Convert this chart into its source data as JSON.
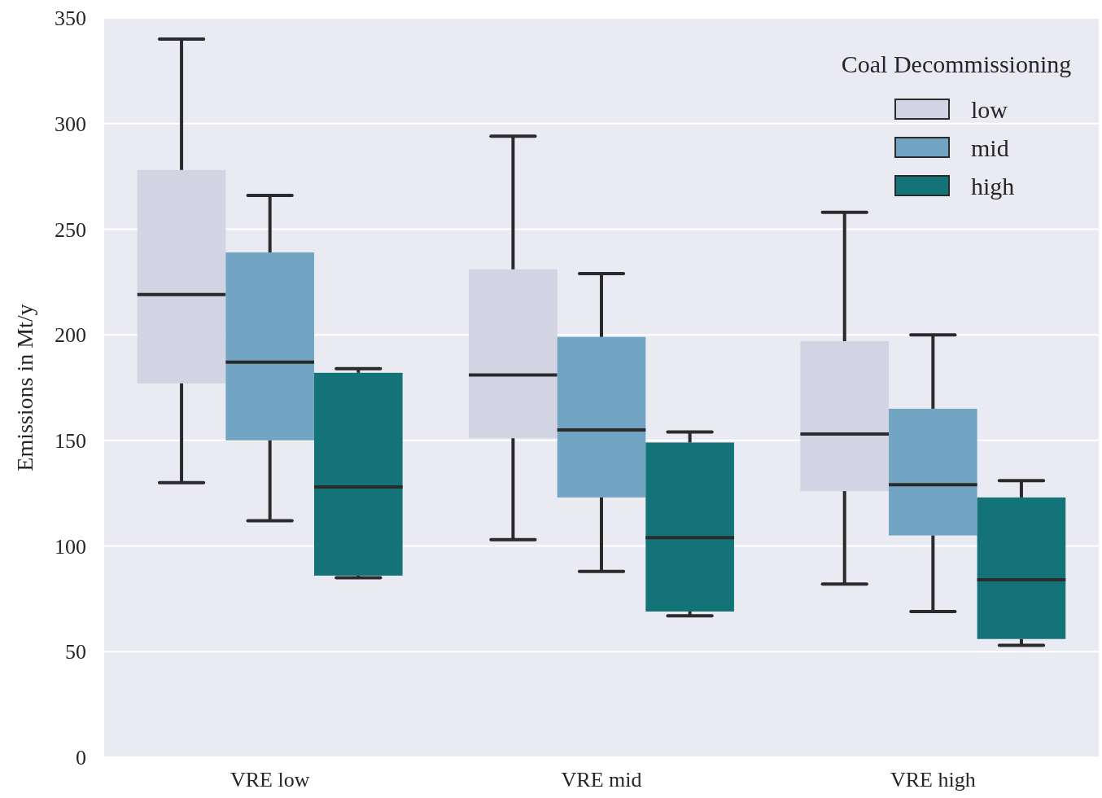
{
  "chart_data": {
    "type": "box",
    "ylabel": "Emissions in Mt/y",
    "legend_title": "Coal Decommissioning",
    "categories": [
      "VRE low",
      "VRE mid",
      "VRE high"
    ],
    "series": [
      {
        "name": "low",
        "color": "#d2d3e3",
        "boxes": [
          {
            "low": 130,
            "q1": 177,
            "median": 219,
            "q3": 278,
            "high": 340
          },
          {
            "low": 103,
            "q1": 151,
            "median": 181,
            "q3": 231,
            "high": 294
          },
          {
            "low": 82,
            "q1": 126,
            "median": 153,
            "q3": 197,
            "high": 258
          }
        ]
      },
      {
        "name": "mid",
        "color": "#72a5c4",
        "boxes": [
          {
            "low": 112,
            "q1": 150,
            "median": 187,
            "q3": 239,
            "high": 266
          },
          {
            "low": 88,
            "q1": 123,
            "median": 155,
            "q3": 199,
            "high": 229
          },
          {
            "low": 69,
            "q1": 105,
            "median": 129,
            "q3": 165,
            "high": 200
          }
        ]
      },
      {
        "name": "high",
        "color": "#137379",
        "boxes": [
          {
            "low": 85,
            "q1": 86,
            "median": 128,
            "q3": 182,
            "high": 184
          },
          {
            "low": 67,
            "q1": 69,
            "median": 104,
            "q3": 149,
            "high": 154
          },
          {
            "low": 53,
            "q1": 56,
            "median": 84,
            "q3": 123,
            "high": 131
          }
        ]
      }
    ],
    "ylim": [
      0,
      350
    ],
    "yticks": [
      0,
      50,
      100,
      150,
      200,
      250,
      300,
      350
    ],
    "grid": "y",
    "legend": "top right"
  }
}
